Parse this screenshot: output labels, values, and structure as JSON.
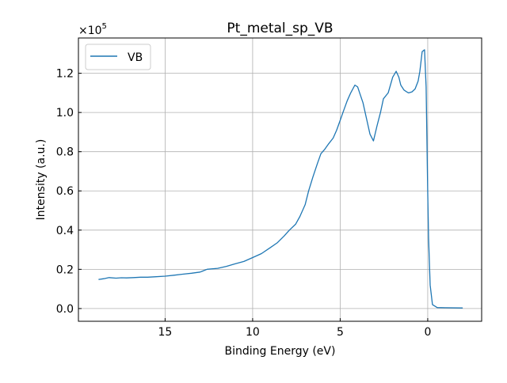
{
  "chart_data": {
    "type": "line",
    "title": "Pt_metal_sp_VB",
    "xlabel": "Binding Energy (eV)",
    "ylabel": "Intensity (a.u.)",
    "y_multiplier_label": "×10",
    "y_multiplier_exp": "5",
    "xlim": [
      19.95,
      -3.08
    ],
    "ylim": [
      -0.065,
      1.38
    ],
    "x_inverted": true,
    "grid": true,
    "legend_position": "top-left",
    "x_ticks": [
      {
        "v": 15,
        "label": "15"
      },
      {
        "v": 10,
        "label": "10"
      },
      {
        "v": 5,
        "label": "5"
      },
      {
        "v": 0,
        "label": "0"
      }
    ],
    "y_ticks": [
      {
        "v": 0,
        "label": "0.0"
      },
      {
        "v": 0.2,
        "label": "0.2"
      },
      {
        "v": 0.4,
        "label": "0.4"
      },
      {
        "v": 0.6,
        "label": "0.6"
      },
      {
        "v": 0.8,
        "label": "0.8"
      },
      {
        "v": 1.0,
        "label": "1.0"
      },
      {
        "v": 1.2,
        "label": "1.2"
      }
    ],
    "series": [
      {
        "name": "VB",
        "color": "#1f77b4",
        "x": [
          18.8,
          18.5,
          18.2,
          17.8,
          17.5,
          17.2,
          16.8,
          16.4,
          16.0,
          15.6,
          15.0,
          14.5,
          14.0,
          13.5,
          13.0,
          12.6,
          12.0,
          11.5,
          11.0,
          10.5,
          10.0,
          9.5,
          9.0,
          8.6,
          8.2,
          7.9,
          7.55,
          7.3,
          7.0,
          6.8,
          6.56,
          6.3,
          6.1,
          5.9,
          5.66,
          5.4,
          5.2,
          5.0,
          4.8,
          4.6,
          4.4,
          4.16,
          4.0,
          3.85,
          3.7,
          3.5,
          3.3,
          3.1,
          2.9,
          2.7,
          2.53,
          2.26,
          2.0,
          1.8,
          1.65,
          1.54,
          1.36,
          1.2,
          1.09,
          0.9,
          0.72,
          0.55,
          0.45,
          0.32,
          0.18,
          0.09,
          0.0,
          -0.05,
          -0.14,
          -0.27,
          -0.54,
          -1.0,
          -2.0
        ],
        "y": [
          0.148,
          0.152,
          0.158,
          0.155,
          0.157,
          0.156,
          0.158,
          0.16,
          0.16,
          0.162,
          0.165,
          0.17,
          0.175,
          0.18,
          0.186,
          0.2,
          0.205,
          0.215,
          0.228,
          0.24,
          0.26,
          0.28,
          0.31,
          0.335,
          0.37,
          0.4,
          0.43,
          0.47,
          0.53,
          0.6,
          0.67,
          0.74,
          0.79,
          0.81,
          0.84,
          0.87,
          0.91,
          0.96,
          1.01,
          1.06,
          1.1,
          1.14,
          1.13,
          1.09,
          1.05,
          0.97,
          0.89,
          0.855,
          0.93,
          1.0,
          1.07,
          1.1,
          1.18,
          1.21,
          1.18,
          1.14,
          1.115,
          1.105,
          1.1,
          1.105,
          1.12,
          1.16,
          1.21,
          1.31,
          1.32,
          1.13,
          0.6,
          0.36,
          0.12,
          0.02,
          0.005,
          0.004,
          0.003
        ]
      }
    ]
  }
}
